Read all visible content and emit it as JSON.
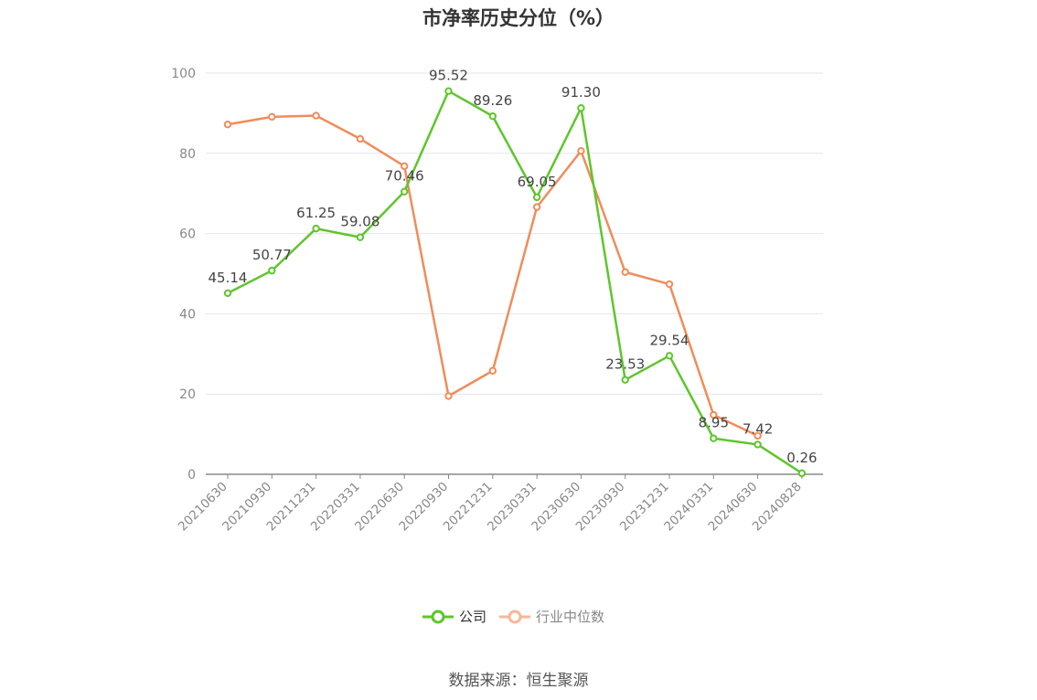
{
  "chart_data": {
    "type": "line",
    "title": "市净率历史分位（%）",
    "categories": [
      "20210630",
      "20210930",
      "20211231",
      "20220331",
      "20220630",
      "20220930",
      "20221231",
      "20230331",
      "20230630",
      "20230930",
      "20231231",
      "20240331",
      "20240630",
      "20240828"
    ],
    "ylim": [
      0,
      100
    ],
    "yticks": [
      0,
      20,
      40,
      60,
      80,
      100
    ],
    "grid": true,
    "legend_position": "bottom",
    "series": [
      {
        "name": "公司",
        "color": "#5ec62b",
        "values": [
          45.14,
          50.77,
          61.25,
          59.08,
          70.46,
          95.52,
          89.26,
          69.05,
          91.3,
          23.53,
          29.54,
          8.95,
          7.42,
          0.26
        ],
        "labels": [
          "45.14",
          "50.77",
          "61.25",
          "59.08",
          "70.46",
          "95.52",
          "89.26",
          "69.05",
          "91.30",
          "23.53",
          "29.54",
          "8.95",
          "7.42",
          "0.26"
        ]
      },
      {
        "name": "行业中位数",
        "color": "#f08c5a",
        "values": [
          87.2,
          89.1,
          89.4,
          83.6,
          76.8,
          19.5,
          25.8,
          66.6,
          80.6,
          50.4,
          47.4,
          14.8,
          9.6,
          null
        ]
      }
    ]
  },
  "source": "数据来源：恒生聚源"
}
